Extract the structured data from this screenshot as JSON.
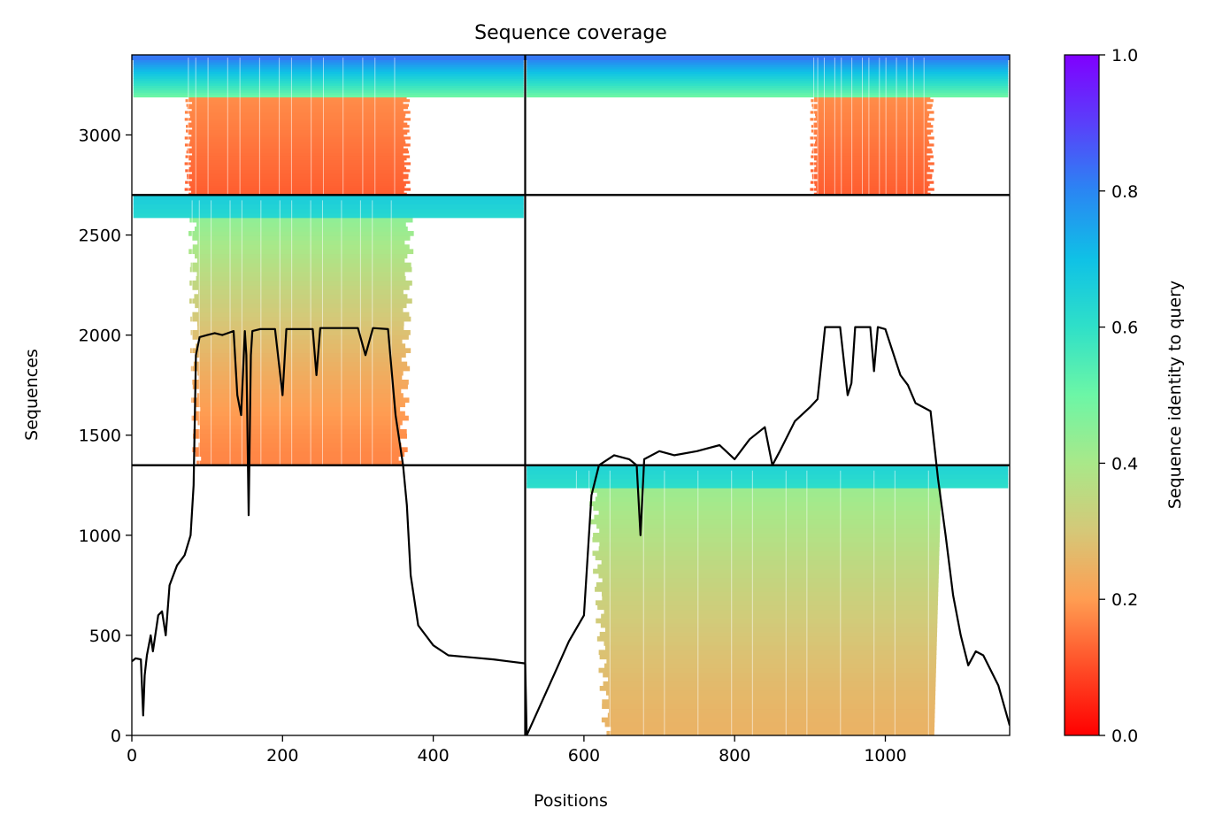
{
  "chart_data": {
    "type": "heatmap",
    "title": "Sequence coverage",
    "xlabel": "Positions",
    "ylabel": "Sequences",
    "xlim": [
      0,
      1165
    ],
    "ylim": [
      0,
      3400
    ],
    "xticks": [
      0,
      200,
      400,
      600,
      800,
      1000
    ],
    "yticks": [
      0,
      500,
      1000,
      1500,
      2000,
      2500,
      3000
    ],
    "grid": false,
    "colormap": "rainbow_r",
    "colorbar": {
      "label": "Sequence identity to query",
      "range": [
        0.0,
        1.0
      ],
      "ticks": [
        "0.0",
        "0.2",
        "0.4",
        "0.6",
        "0.8",
        "1.0"
      ]
    },
    "segment_boundaries": {
      "x": 522,
      "y": [
        1350,
        2700
      ]
    },
    "blocks": [
      {
        "name": "lower-left",
        "x": [
          0,
          522
        ],
        "y": [
          0,
          1350
        ],
        "coverage": "empty"
      },
      {
        "name": "lower-right",
        "x": [
          522,
          1165
        ],
        "y": [
          0,
          1350
        ],
        "coverage": "dense",
        "cols": [
          [
            590,
            1085
          ]
        ],
        "identity_top": 0.6,
        "identity_bottom": 0.25
      },
      {
        "name": "middle-left",
        "x": [
          0,
          522
        ],
        "y": [
          1350,
          2700
        ],
        "coverage": "dense",
        "cols": [
          [
            80,
            360
          ]
        ],
        "identity_top": 0.62,
        "identity_bottom": 0.17
      },
      {
        "name": "middle-right",
        "x": [
          522,
          1165
        ],
        "y": [
          1350,
          2700
        ],
        "coverage": "empty"
      },
      {
        "name": "upper-left",
        "x": [
          0,
          522
        ],
        "y": [
          2700,
          3400
        ],
        "coverage": "split",
        "cols": [
          [
            75,
            365
          ]
        ],
        "identity_top": 0.85,
        "identity_bottom": 0.12
      },
      {
        "name": "upper-right",
        "x": [
          522,
          1165
        ],
        "y": [
          2700,
          3400
        ],
        "coverage": "split",
        "cols": [
          [
            905,
            1060
          ]
        ],
        "identity_top": 0.85,
        "identity_bottom": 0.12
      }
    ],
    "coverage_line": {
      "x": [
        0,
        5,
        12,
        15,
        17,
        20,
        25,
        28,
        35,
        40,
        45,
        50,
        55,
        60,
        70,
        78,
        82,
        85,
        90,
        100,
        110,
        120,
        135,
        140,
        145,
        150,
        152,
        155,
        158,
        160,
        170,
        190,
        200,
        205,
        210,
        220,
        240,
        245,
        250,
        270,
        300,
        310,
        320,
        340,
        350,
        360,
        365,
        370,
        380,
        400,
        420,
        450,
        480,
        500,
        522,
        524,
        530,
        560,
        580,
        600,
        610,
        620,
        640,
        660,
        670,
        675,
        680,
        700,
        720,
        750,
        780,
        800,
        820,
        840,
        850,
        860,
        880,
        900,
        910,
        920,
        940,
        950,
        955,
        960,
        980,
        985,
        990,
        1000,
        1020,
        1030,
        1040,
        1060,
        1070,
        1080,
        1090,
        1100,
        1110,
        1120,
        1130,
        1150,
        1165
      ],
      "y": [
        370,
        385,
        380,
        100,
        300,
        400,
        500,
        420,
        600,
        620,
        500,
        750,
        800,
        850,
        900,
        1000,
        1250,
        1900,
        1990,
        2000,
        2010,
        2000,
        2020,
        1700,
        1600,
        2020,
        1900,
        1100,
        1900,
        2020,
        2030,
        2030,
        1700,
        2030,
        2030,
        2030,
        2030,
        1800,
        2035,
        2035,
        2035,
        1900,
        2035,
        2030,
        1600,
        1350,
        1150,
        800,
        550,
        450,
        400,
        390,
        380,
        370,
        360,
        0,
        50,
        300,
        470,
        600,
        1200,
        1350,
        1400,
        1380,
        1350,
        1000,
        1380,
        1420,
        1400,
        1420,
        1450,
        1380,
        1480,
        1540,
        1350,
        1420,
        1570,
        1640,
        1680,
        2040,
        2040,
        1700,
        1760,
        2040,
        2040,
        1820,
        2040,
        2030,
        1800,
        1750,
        1660,
        1620,
        1280,
        1000,
        700,
        500,
        350,
        420,
        400,
        250,
        50
      ]
    }
  }
}
